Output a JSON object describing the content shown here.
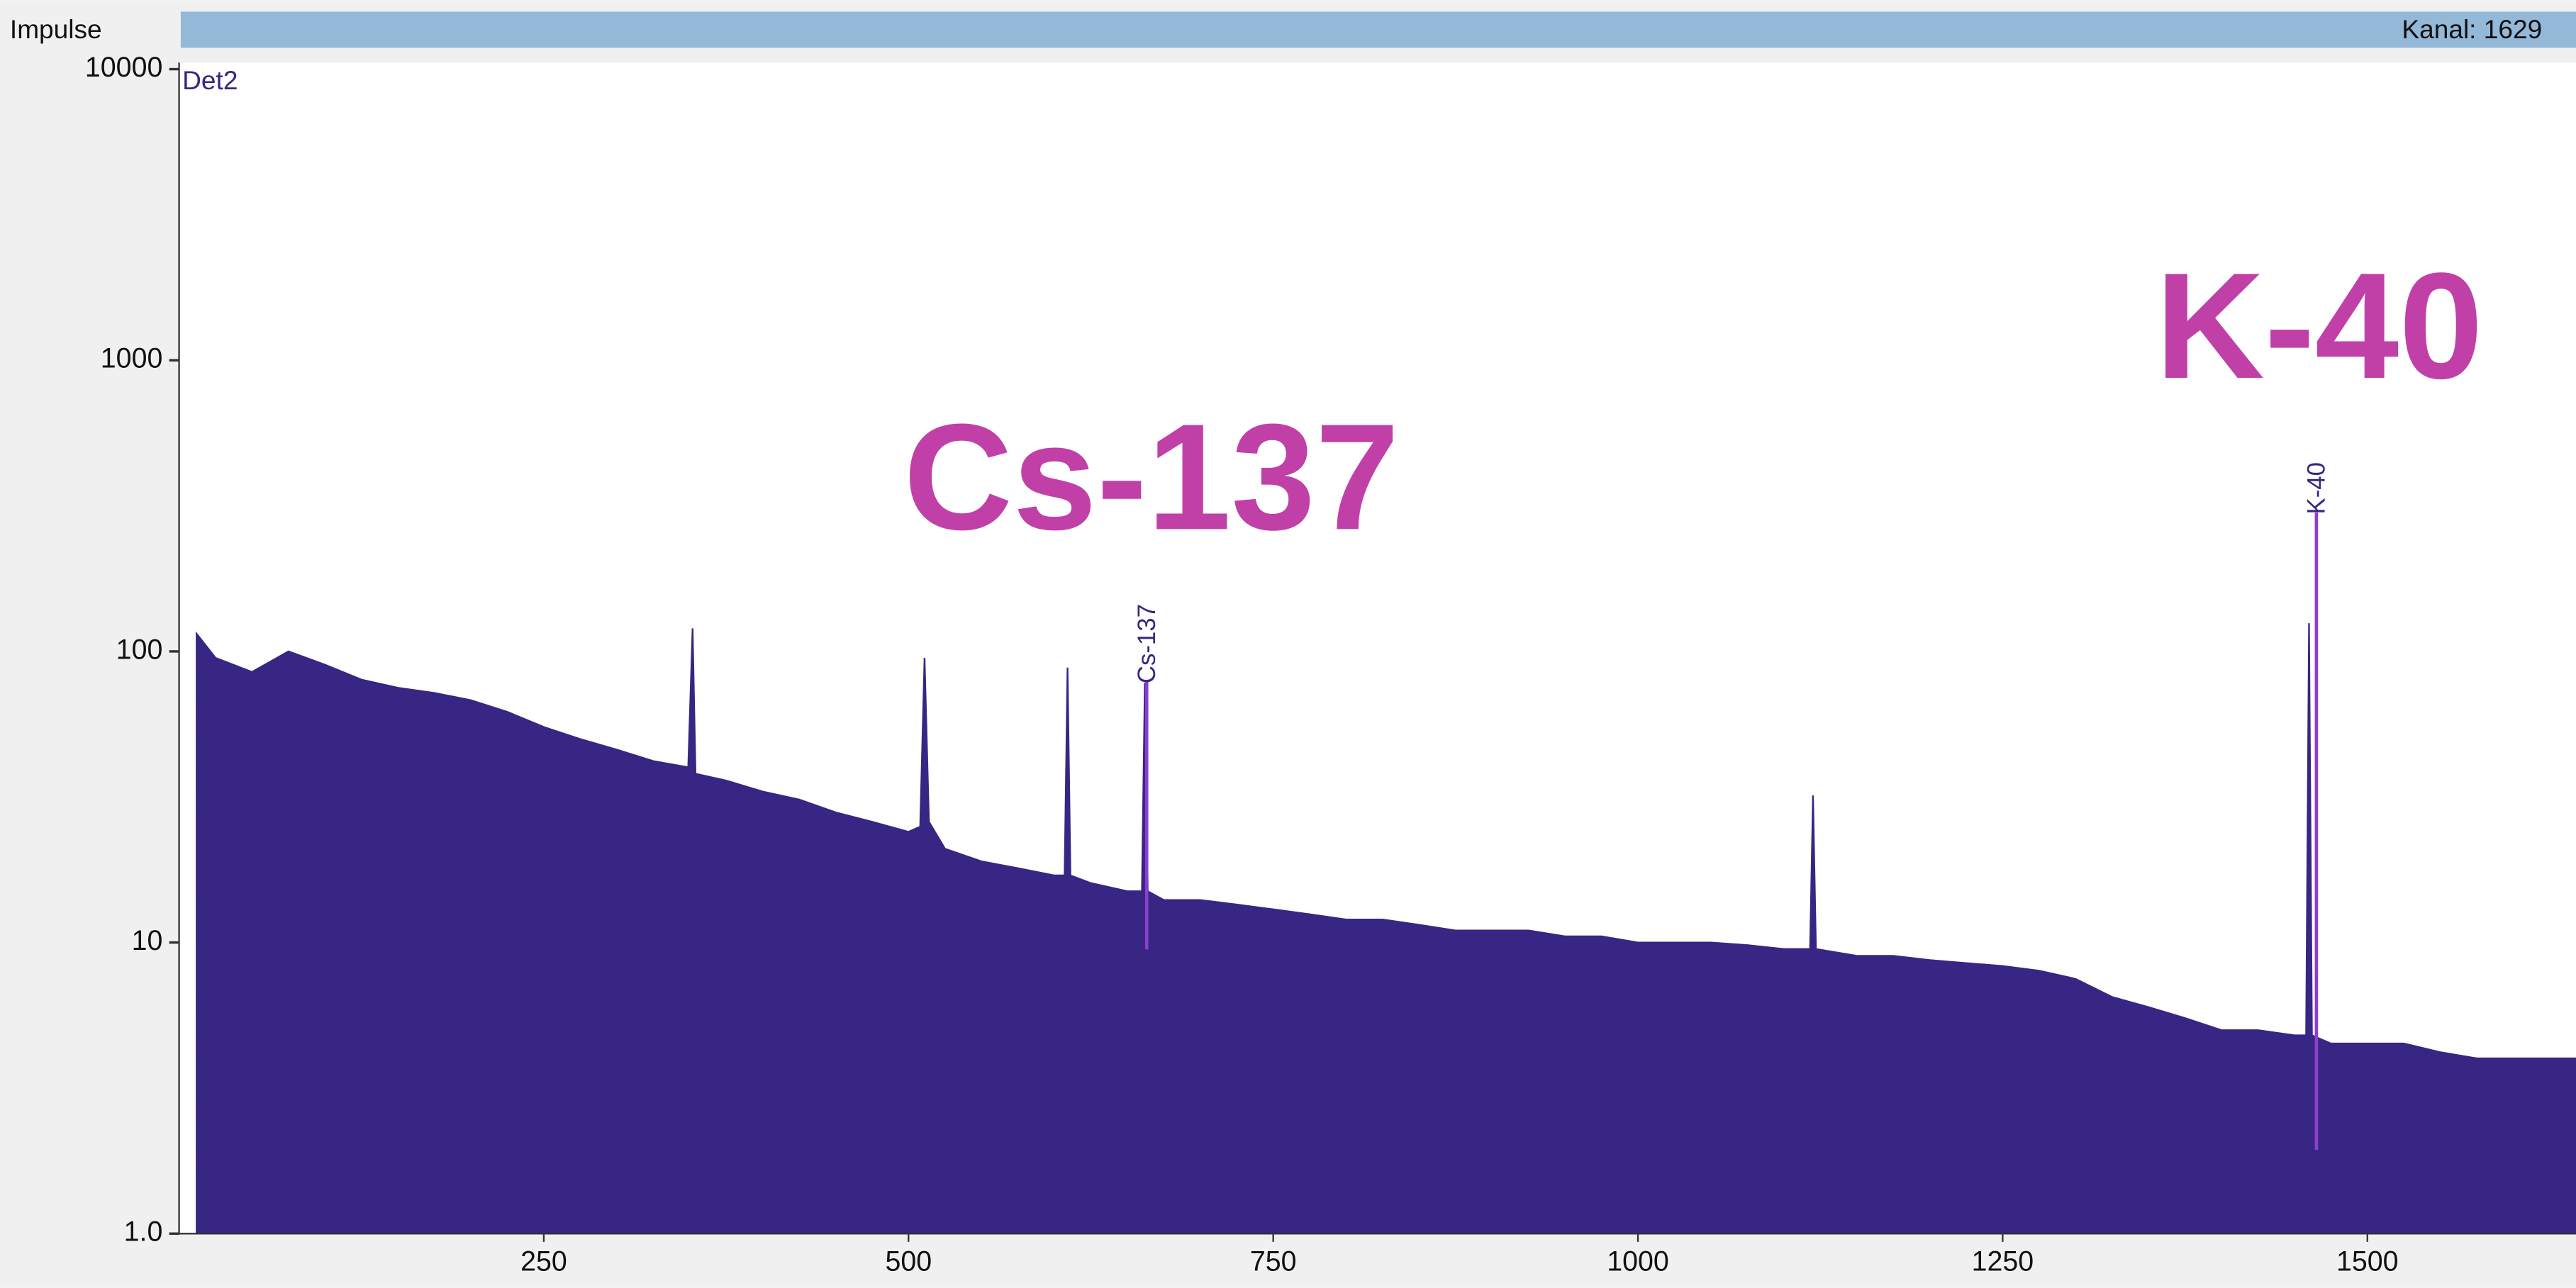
{
  "chart_data": {
    "type": "area",
    "ylabel": "Impulse",
    "status": "Kanal: 1629",
    "annotations": [
      "Cs-137",
      "K-40"
    ],
    "peak_labels": [
      "Cs-137",
      "K-40"
    ],
    "x": [
      12,
      25,
      50,
      75,
      100,
      125,
      150,
      175,
      200,
      225,
      250,
      275,
      300,
      325,
      349,
      352,
      354,
      375,
      400,
      425,
      450,
      475,
      500,
      508,
      511,
      514,
      525,
      550,
      575,
      600,
      607,
      609,
      611,
      625,
      650,
      660,
      662,
      664,
      675,
      700,
      725,
      750,
      775,
      800,
      825,
      850,
      875,
      900,
      925,
      950,
      975,
      1000,
      1025,
      1050,
      1075,
      1100,
      1118,
      1120,
      1122,
      1150,
      1175,
      1200,
      1225,
      1250,
      1275,
      1300,
      1325,
      1350,
      1375,
      1400,
      1425,
      1450,
      1458,
      1460,
      1462,
      1475,
      1500,
      1525,
      1550,
      1575,
      1600,
      1625,
      1643
    ],
    "series": [
      {
        "name": "Det2",
        "color": "#372683",
        "values": [
          115,
          95,
          85,
          100,
          90,
          80,
          75,
          72,
          68,
          62,
          55,
          50,
          46,
          42,
          40,
          120,
          38,
          36,
          33,
          31,
          28,
          26,
          24,
          25,
          95,
          26,
          21,
          19,
          18,
          17,
          17,
          88,
          17,
          16,
          15,
          15,
          78,
          15,
          14,
          14,
          13.5,
          13,
          12.5,
          12,
          12,
          11.5,
          11,
          11,
          11,
          10.5,
          10.5,
          10,
          10,
          10,
          9.8,
          9.5,
          9.5,
          32,
          9.5,
          9,
          9,
          8.7,
          8.5,
          8.3,
          8,
          7.5,
          6.5,
          6,
          5.5,
          5,
          5,
          4.8,
          4.8,
          125,
          4.8,
          4.5,
          4.5,
          4.5,
          4.2,
          4,
          4,
          4,
          4
        ]
      }
    ],
    "log_y": true,
    "xlim": [
      0,
      1643
    ],
    "ylim": [
      1,
      10000
    ],
    "xticks": [
      250,
      500,
      750,
      1000,
      1250,
      1500
    ],
    "yticks": [
      {
        "value": 1,
        "label": "1.0"
      },
      10,
      100,
      1000,
      10000
    ]
  }
}
